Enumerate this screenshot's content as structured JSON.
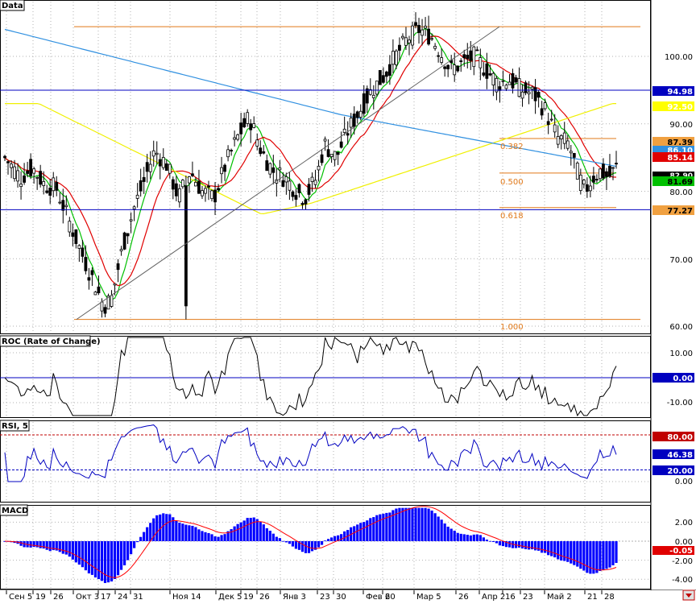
{
  "panel_titles": {
    "price": "Data",
    "roc": "ROC (Rate of Change)",
    "rsi": "RSI, 5",
    "macd": "MACD"
  },
  "x_axis": {
    "labels": [
      "Сен 5",
      "19",
      "26",
      "Окт 3",
      "17",
      "24",
      "31",
      "Ноя 14",
      "Дек 5",
      "19",
      "26",
      "Янв 3",
      "23",
      "30",
      "Фев 6",
      "20",
      "Мар 5",
      "26",
      "Апр 2",
      "16",
      "23",
      "Май 2",
      "21",
      "28"
    ]
  },
  "price_axis": {
    "ticks": [
      "100.00",
      "90.00",
      "80.00",
      "70.00",
      "60.00"
    ]
  },
  "roc_axis": {
    "ticks": [
      "10.00",
      "0.00",
      "-10.00"
    ]
  },
  "rsi_axis": {
    "ticks": [
      "80.00",
      "46.38",
      "20.00",
      "0.00"
    ]
  },
  "macd_axis": {
    "ticks": [
      "2.00",
      "0.00",
      "-0.05",
      "-2.00",
      "-4.00"
    ]
  },
  "price_labels": {
    "l9498": "94.98",
    "l9250": "92.50",
    "l8739": "87.39",
    "l8610": "86.10",
    "l8514": "85.14",
    "l8290": "82.90",
    "l8169": "81.69",
    "l7727": "77.27"
  },
  "fib_labels": {
    "f382": "0.382",
    "f500": "0.500",
    "f618": "0.618",
    "f1000": "1.000"
  },
  "colors": {
    "sma_short": "#00c000",
    "sma_mid": "#e00000",
    "sma_long": "#f0f000",
    "sma_longest": "#3090e0",
    "fib": "#e07818",
    "hline": "#0000c0",
    "macd_hist": "#0000ff",
    "macd_signal": "#ff0000"
  },
  "chart_data": {
    "type": "candlestick",
    "price_axis_range": [
      58,
      108
    ],
    "horizontal_levels": [
      94.98,
      77.27
    ],
    "fibonacci": {
      "low": 61.0,
      "high": 104.4,
      "levels": [
        0.382,
        0.5,
        0.618,
        1.0
      ]
    },
    "last_close": 81.69,
    "rsi_last": 46.38,
    "rsi_bands": [
      80,
      20
    ],
    "macd_last": -0.05,
    "indicator_ranges": {
      "roc": [
        -16,
        18
      ],
      "rsi": [
        -5,
        100
      ],
      "macd": [
        -5,
        3.5
      ]
    }
  }
}
